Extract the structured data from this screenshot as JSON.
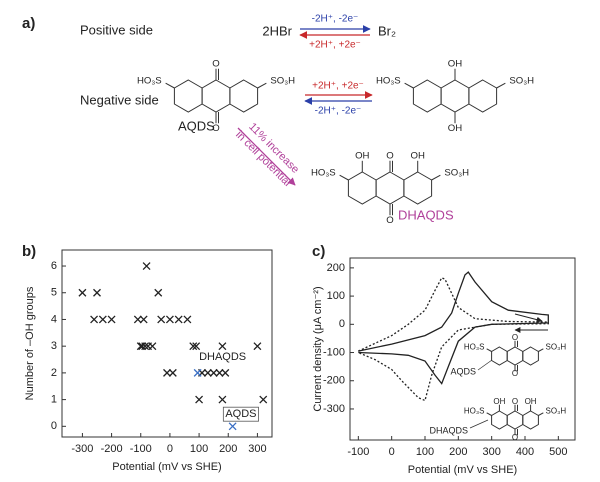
{
  "figure": {
    "panel_a": {
      "label": "a)",
      "positive_side": "Positive side",
      "hbr": "2HBr",
      "br2": "Br₂",
      "pos_forward": "-2H⁺, -2e⁻",
      "pos_reverse": "+2H⁺, +2e⁻",
      "negative_side": "Negative side",
      "neg_forward": "+2H⁺, +2e⁻",
      "neg_reverse": "-2H⁺, -2e⁻",
      "aqds_label": "AQDS",
      "increase": [
        "11% increase",
        "in cell potential"
      ],
      "dhaqds_label": "DHAQDS",
      "molecules": [
        {
          "left": "HO₃S",
          "right": "SO₃H",
          "top": "O",
          "bottom": "O"
        },
        {
          "left": "HO₃S",
          "right": "SO₃H",
          "top": "OH",
          "bottom": "OH"
        },
        {
          "left": "HO₃S",
          "right": "SO₃H",
          "top": "O",
          "bottom": "O",
          "peri_left": "OH",
          "peri_right": "OH"
        }
      ]
    },
    "panel_b_label": "b)",
    "panel_c_label": "c)"
  },
  "chart_data": [
    {
      "type": "scatter",
      "xlabel": "Potential (mV vs SHE)",
      "ylabel": "Number of –OH groups",
      "xlim": [
        -370,
        350
      ],
      "ylim": [
        -0.4,
        6.6
      ],
      "xticks": [
        -300,
        -200,
        -100,
        0,
        100,
        200,
        300
      ],
      "yticks": [
        0,
        1,
        2,
        3,
        4,
        5,
        6
      ],
      "series": [
        {
          "color": "#222222",
          "x": [
            -300,
            -250,
            -40,
            -80,
            -260,
            -230,
            -200,
            -110,
            -90,
            -30,
            0,
            30,
            60,
            -100,
            -95,
            -85,
            -75,
            -60,
            80,
            90,
            180,
            300,
            -10,
            10,
            110,
            130,
            150,
            170,
            190,
            100,
            180,
            320
          ],
          "values": [
            5,
            5,
            5,
            6,
            4,
            4,
            4,
            4,
            4,
            4,
            4,
            4,
            4,
            3,
            3,
            3,
            3,
            3,
            3,
            3,
            3,
            3,
            2,
            2,
            2,
            2,
            2,
            2,
            2,
            1,
            1,
            1
          ]
        },
        {
          "color": "#3a6fc4",
          "x": [
            95,
            215
          ],
          "values": [
            2,
            0
          ]
        }
      ],
      "annotations": [
        "DHAQDS",
        "AQDS"
      ]
    },
    {
      "type": "line",
      "xlabel": "Potential (mV vs SHE)",
      "ylabel": "Current density (μA cm⁻²)",
      "xlim": [
        -125,
        550
      ],
      "ylim": [
        -410,
        235
      ],
      "xticks": [
        -100,
        0,
        100,
        200,
        300,
        400,
        500
      ],
      "yticks": [
        -300,
        -200,
        -100,
        0,
        100,
        200
      ],
      "series": [
        {
          "name": "AQDS",
          "color": "#222222",
          "line_style": "solid",
          "x": [
            -100,
            0,
            100,
            150,
            180,
            200,
            220,
            230,
            250,
            300,
            350,
            450,
            470,
            470,
            400,
            300,
            250,
            200,
            170,
            150,
            130,
            100,
            50,
            0,
            -100
          ],
          "values": [
            -95,
            -70,
            -40,
            -10,
            40,
            110,
            175,
            185,
            150,
            80,
            50,
            35,
            33,
            5,
            3,
            0,
            -10,
            -60,
            -150,
            -210,
            -180,
            -130,
            -110,
            -105,
            -100
          ]
        },
        {
          "name": "DHAQDS",
          "color": "#222222",
          "line_style": "dotted",
          "x": [
            -100,
            0,
            50,
            100,
            130,
            150,
            160,
            200,
            250,
            350,
            470,
            470,
            300,
            200,
            150,
            120,
            100,
            80,
            30,
            0,
            -50,
            -100
          ],
          "values": [
            -95,
            -40,
            0,
            50,
            120,
            165,
            160,
            60,
            20,
            10,
            8,
            2,
            0,
            -20,
            -80,
            -180,
            -270,
            -260,
            -200,
            -160,
            -125,
            -100
          ]
        }
      ],
      "molecules": [
        {
          "left": "HO₃S",
          "right": "SO₃H",
          "top": "O",
          "bottom": "O"
        },
        {
          "left": "HO₃S",
          "right": "SO₃H",
          "top": "O",
          "bottom": "O",
          "peri_left": "OH",
          "peri_right": "OH"
        }
      ]
    }
  ]
}
